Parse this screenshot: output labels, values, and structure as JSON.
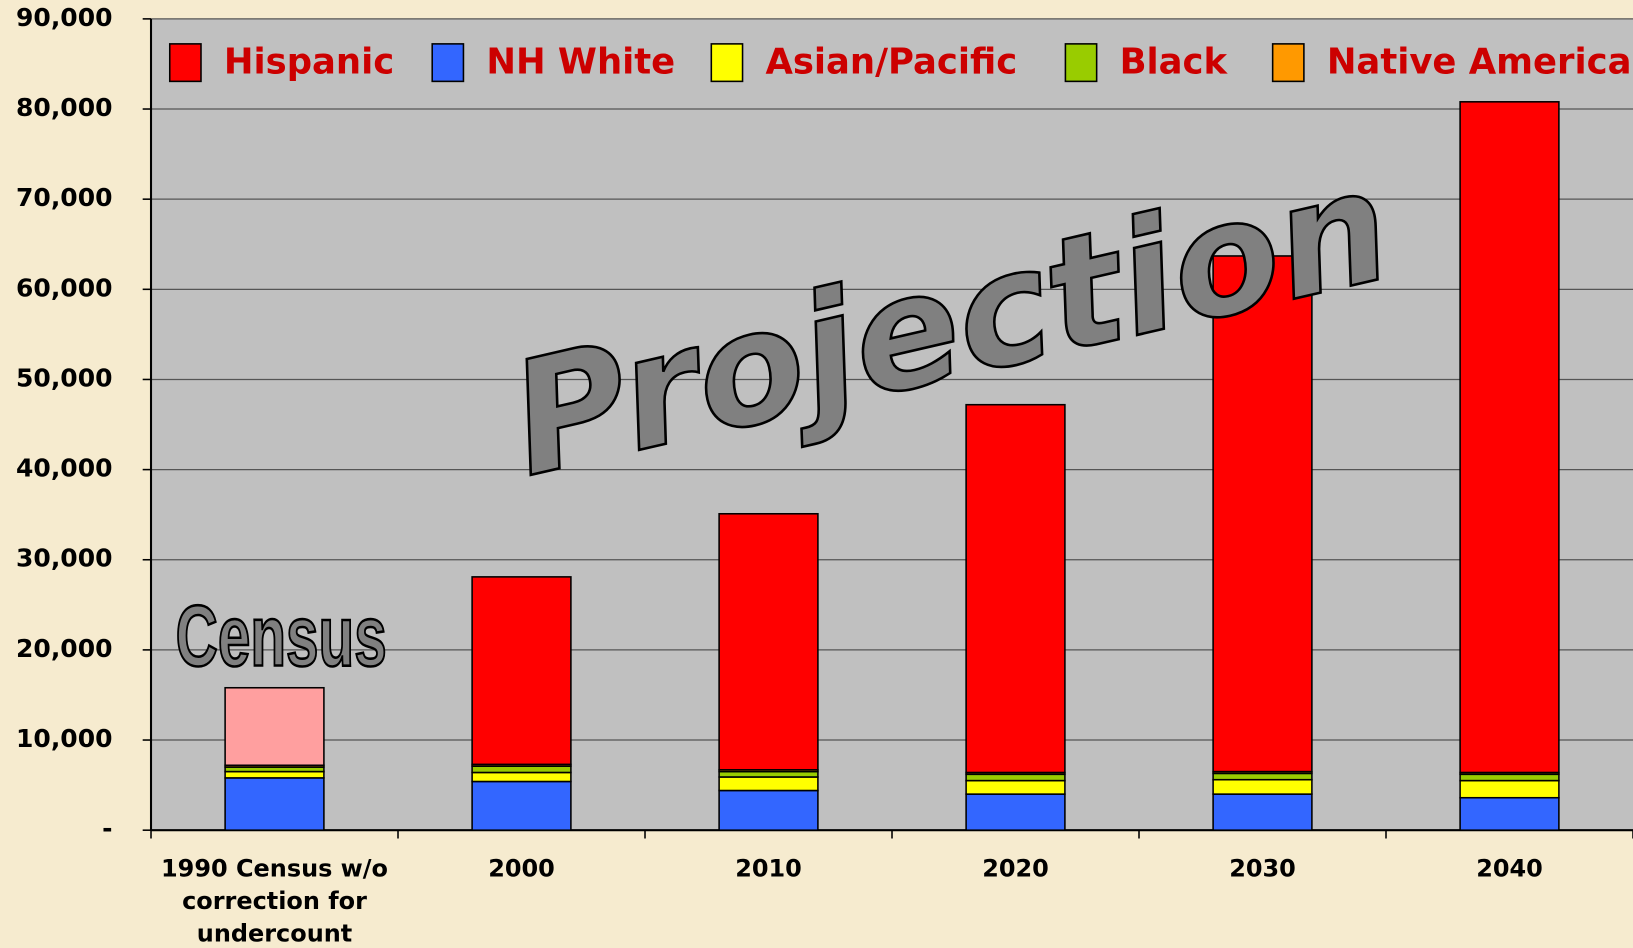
{
  "chart_data": {
    "type": "stacked_bar",
    "categories": [
      "1990 Census w/o correction for undercount",
      "2000",
      "2010",
      "2020",
      "2030",
      "2040"
    ],
    "series": [
      {
        "name": "Hispanic",
        "color": "#ff0000",
        "point_colors": [
          "#ff9f9f",
          "#ff0000",
          "#ff0000",
          "#ff0000",
          "#ff0000",
          "#ff0000"
        ],
        "values": [
          8600,
          20800,
          28400,
          40800,
          57200,
          74400
        ]
      },
      {
        "name": "NH White",
        "color": "#3366ff",
        "values": [
          5800,
          5400,
          4400,
          4000,
          4000,
          3600
        ]
      },
      {
        "name": "Asian/Pacific",
        "color": "#ffff00",
        "values": [
          700,
          1000,
          1500,
          1500,
          1600,
          1900
        ]
      },
      {
        "name": "Black",
        "color": "#99cc00",
        "values": [
          500,
          700,
          600,
          700,
          700,
          700
        ]
      },
      {
        "name": "Native American",
        "color": "#ff9900",
        "values": [
          200,
          200,
          200,
          200,
          200,
          200
        ]
      }
    ],
    "ylim": [
      0,
      90000
    ],
    "yticks": [
      {
        "value": 0,
        "label": "-"
      },
      {
        "value": 10000,
        "label": "10,000"
      },
      {
        "value": 20000,
        "label": "20,000"
      },
      {
        "value": 30000,
        "label": "30,000"
      },
      {
        "value": 40000,
        "label": "40,000"
      },
      {
        "value": 50000,
        "label": "50,000"
      },
      {
        "value": 60000,
        "label": "60,000"
      },
      {
        "value": 70000,
        "label": "70,000"
      },
      {
        "value": 80000,
        "label": "80,000"
      },
      {
        "value": 90000,
        "label": "90,000"
      }
    ],
    "grid": true,
    "legend": "top",
    "legend_text_color": "#cc0000",
    "annotations": [
      "Census",
      "Projection"
    ]
  }
}
